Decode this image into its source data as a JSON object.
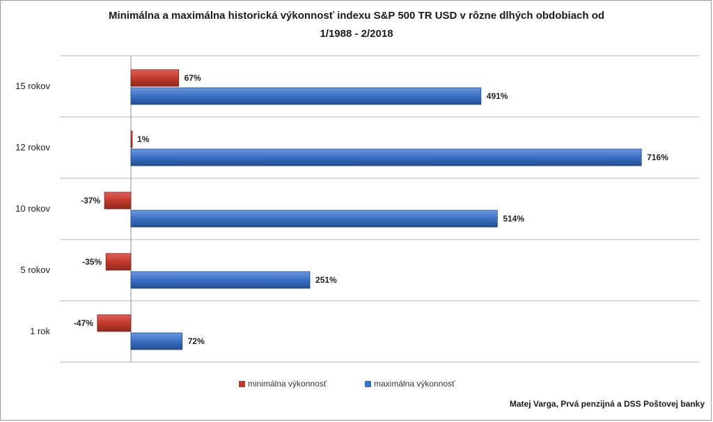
{
  "chart_data": {
    "type": "bar",
    "orientation": "horizontal",
    "title": "Minimálna a maximálna historická výkonnosť indexu S&P 500 TR USD v rôzne dlhých obdobiach od",
    "subtitle": "1/1988 - 2/2018",
    "categories": [
      "15 rokov",
      "12 rokov",
      "10 rokov",
      "5 rokov",
      "1 rok"
    ],
    "series": [
      {
        "name": "minimálna výkonnosť",
        "color": "#c0392b",
        "values": [
          67,
          1,
          -37,
          -35,
          -47
        ],
        "labels": [
          "67%",
          "1%",
          "-37%",
          "-35%",
          "-47%"
        ]
      },
      {
        "name": "maximálna výkonnosť",
        "color": "#3a6fc4",
        "values": [
          491,
          716,
          514,
          251,
          72
        ],
        "labels": [
          "491%",
          "716%",
          "514%",
          "251%",
          "72%"
        ]
      }
    ],
    "xlim": [
      -60,
      720
    ],
    "grid": true,
    "legend_position": "bottom"
  },
  "credit": "Matej Varga, Prvá penzijná a DSS Poštovej banky"
}
